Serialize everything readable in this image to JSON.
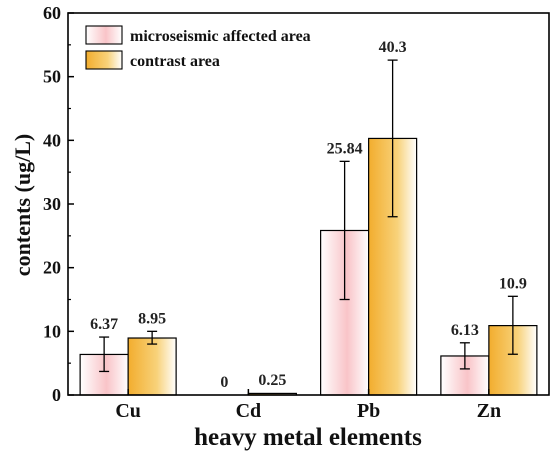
{
  "chart_data": {
    "type": "bar",
    "xlabel": "heavy metal elements",
    "ylabel": "contents (ug/L)",
    "ylim": [
      0,
      60
    ],
    "yticks": [
      0,
      10,
      20,
      30,
      40,
      50,
      60
    ],
    "categories": [
      "Cu",
      "Cd",
      "Pb",
      "Zn"
    ],
    "legend_position": "top-left",
    "grid": false,
    "series": [
      {
        "name": "microseismic affected area",
        "values": [
          6.37,
          0,
          25.84,
          6.13
        ],
        "labels": [
          "6.37",
          "0",
          "25.84",
          "6.13"
        ],
        "error_low": [
          3.7,
          0,
          15.0,
          4.1
        ],
        "error_high": [
          9.1,
          0,
          36.7,
          8.2
        ],
        "color": "#f7b6bc"
      },
      {
        "name": "contrast area",
        "values": [
          8.95,
          0.25,
          40.3,
          10.9
        ],
        "labels": [
          "8.95",
          "0.25",
          "40.3",
          "10.9"
        ],
        "error_low": [
          8.0,
          0.15,
          28.0,
          6.4
        ],
        "error_high": [
          10.0,
          0.35,
          52.6,
          15.5
        ],
        "color": "#f3b23a"
      }
    ]
  }
}
